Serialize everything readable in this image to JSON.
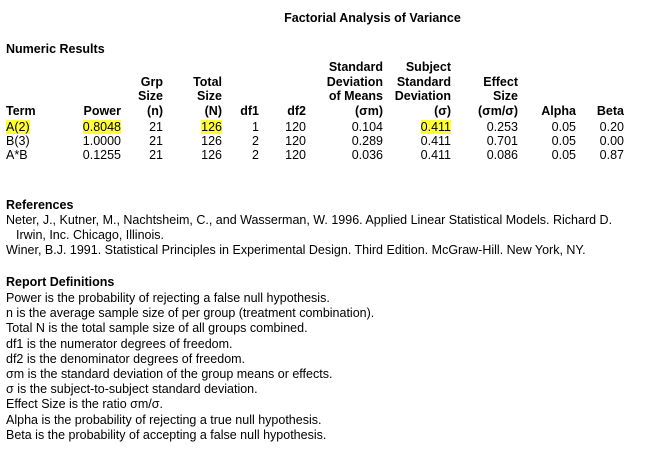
{
  "title": "Factorial Analysis of Variance",
  "numeric_results": {
    "heading": "Numeric Results",
    "columns": [
      {
        "key": "term",
        "lines": [
          "Term"
        ]
      },
      {
        "key": "power",
        "lines": [
          "Power"
        ]
      },
      {
        "key": "grp",
        "lines": [
          "Grp",
          "Size",
          "(n)"
        ]
      },
      {
        "key": "total",
        "lines": [
          "Total",
          "Size",
          "(N)"
        ]
      },
      {
        "key": "df1",
        "lines": [
          "df1"
        ]
      },
      {
        "key": "df2",
        "lines": [
          "df2"
        ]
      },
      {
        "key": "sdm",
        "lines": [
          "Standard",
          "Deviation",
          "of Means",
          "(σm)"
        ]
      },
      {
        "key": "sss",
        "lines": [
          "Subject",
          "Standard",
          "Deviation",
          "(σ)"
        ]
      },
      {
        "key": "es",
        "lines": [
          "Effect",
          "Size",
          "(σm/σ)"
        ]
      },
      {
        "key": "alpha",
        "lines": [
          "Alpha"
        ]
      },
      {
        "key": "beta",
        "lines": [
          "Beta"
        ]
      }
    ],
    "rows": [
      {
        "term": "A(2)",
        "power": "0.8048",
        "grp": "21",
        "total": "126",
        "df1": "1",
        "df2": "120",
        "sdm": "0.104",
        "sss": "0.411",
        "es": "0.253",
        "alpha": "0.05",
        "beta": "0.20"
      },
      {
        "term": "B(3)",
        "power": "1.0000",
        "grp": "21",
        "total": "126",
        "df1": "2",
        "df2": "120",
        "sdm": "0.289",
        "sss": "0.411",
        "es": "0.701",
        "alpha": "0.05",
        "beta": "0.00"
      },
      {
        "term": "A*B",
        "power": "0.1255",
        "grp": "21",
        "total": "126",
        "df1": "2",
        "df2": "120",
        "sdm": "0.036",
        "sss": "0.411",
        "es": "0.086",
        "alpha": "0.05",
        "beta": "0.87"
      }
    ],
    "highlight_color": "#ffff33"
  },
  "references": {
    "heading": "References",
    "items": [
      {
        "line1": "Neter, J., Kutner, M., Nachtsheim, C., and Wasserman, W. 1996. Applied Linear Statistical Models. Richard D.",
        "line2": "Irwin, Inc. Chicago, Illinois."
      },
      {
        "line1": "Winer, B.J. 1991. Statistical Principles in Experimental Design. Third Edition. McGraw-Hill. New York, NY.",
        "line2": ""
      }
    ]
  },
  "report_definitions": {
    "heading": "Report Definitions",
    "lines": [
      "Power is the probability of rejecting a false null hypothesis.",
      "n is the average sample size of per group (treatment combination).",
      "Total N is the total sample size of all groups combined.",
      "df1 is the numerator degrees of freedom.",
      "df2 is the denominator degrees of freedom.",
      "σm is the standard deviation of the group means or effects.",
      "σ is the subject-to-subject standard deviation.",
      "Effect Size is the ratio σm/σ.",
      "Alpha is the probability of rejecting a true null hypothesis.",
      "Beta is the probability of accepting a false null hypothesis."
    ]
  }
}
